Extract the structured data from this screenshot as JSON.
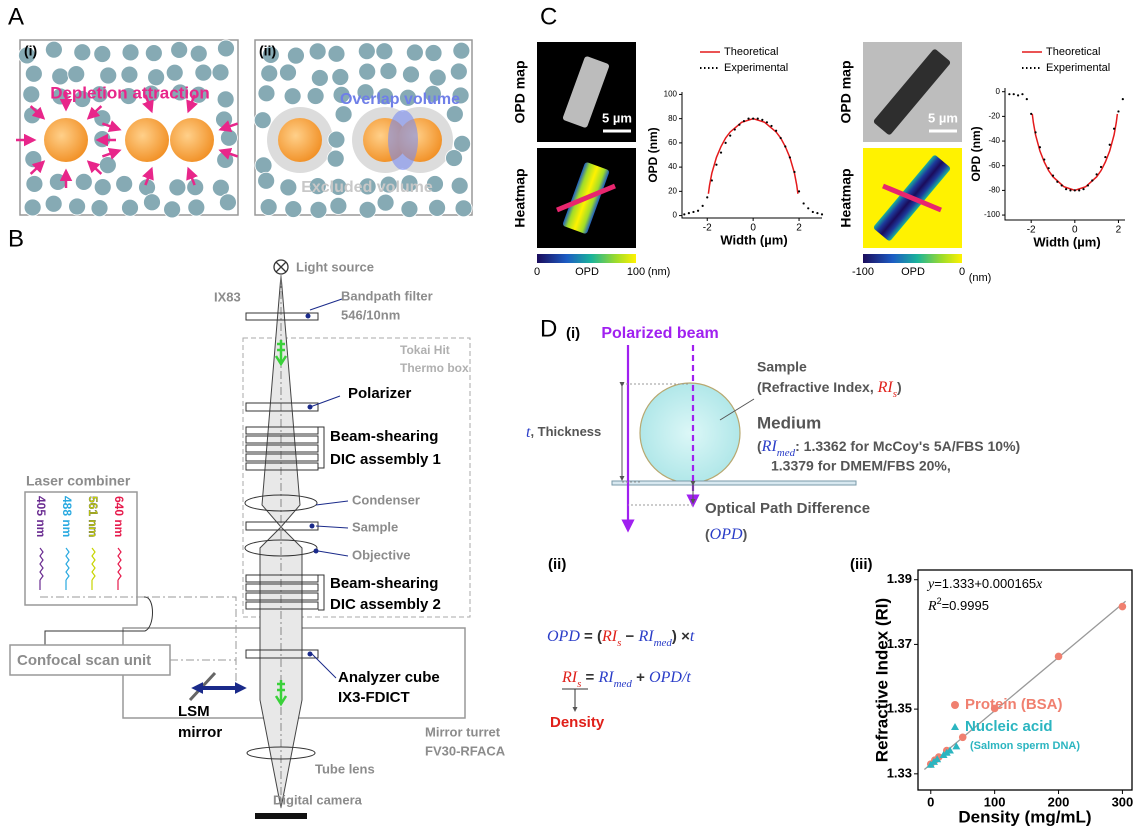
{
  "panel_a": {
    "label": "A",
    "i": {
      "label": "(i)",
      "title": "Depletion attraction"
    },
    "ii": {
      "label": "(ii)",
      "overlap": "Overlap volume",
      "excluded": "Excluded volume"
    }
  },
  "panel_b": {
    "label": "B",
    "light_source": "Light source",
    "ix83": "IX83",
    "filter": [
      "Bandpath filter",
      "546/10nm"
    ],
    "thermo": [
      "Tokai Hit",
      "Thermo box"
    ],
    "polarizer": "Polarizer",
    "dic1": [
      "Beam-shearing",
      "DIC assembly 1"
    ],
    "condenser": "Condenser",
    "sample": "Sample",
    "objective": "Objective",
    "dic2": [
      "Beam-shearing",
      "DIC assembly 2"
    ],
    "analyzer": [
      "Analyzer cube",
      "IX3-FDICT"
    ],
    "turret": [
      "Mirror turret",
      "FV30-RFACA"
    ],
    "tube_lens": "Tube lens",
    "camera": "Digital camera",
    "laser_combiner": "Laser combiner",
    "lasers": [
      {
        "label": "405 nm",
        "color": "#6a2c91"
      },
      {
        "label": "488 nm",
        "color": "#29a9e0"
      },
      {
        "label": "561 nm",
        "color": "#c8d400"
      },
      {
        "label": "640 nm",
        "color": "#e6194b"
      }
    ],
    "scan_unit": "Confocal scan unit",
    "lsm": [
      "LSM",
      "mirror"
    ]
  },
  "panel_c": {
    "label": "C",
    "samples": [
      {
        "opd_map": "OPD map",
        "heatmap": "Heatmap",
        "scale": "5 µm",
        "cbar_ticks": [
          0,
          100
        ],
        "cbar_name": "OPD",
        "cbar_unit": "(nm)",
        "chart": {
          "type": "line",
          "xlabel": "Width (µm)",
          "ylabel": "OPD (nm)",
          "xlim": [
            -3.1,
            3
          ],
          "ylim": [
            -2,
            102
          ],
          "xticks": [
            -2,
            0,
            2
          ],
          "yticks": [
            0,
            20,
            40,
            60,
            80,
            100
          ],
          "series": [
            {
              "name": "Theoretical",
              "color": "#e41a1c",
              "style": "solid",
              "x": [
                -1.95,
                -1.9,
                -1.8,
                -1.6,
                -1.4,
                -1.2,
                -1,
                -0.5,
                0,
                0.5,
                1,
                1.2,
                1.4,
                1.6,
                1.8,
                1.9,
                1.95
              ],
              "values": [
                18,
                25,
                35,
                48,
                57,
                64,
                69,
                77,
                80,
                77,
                69,
                64,
                57,
                48,
                35,
                25,
                18
              ]
            },
            {
              "name": "Experimental",
              "color": "#000000",
              "style": "dotted",
              "x": [
                -3,
                -2.8,
                -2.6,
                -2.4,
                -2.2,
                -2,
                -1.8,
                -1.6,
                -1.4,
                -1.2,
                -1,
                -0.8,
                -0.6,
                -0.4,
                -0.2,
                0,
                0.2,
                0.4,
                0.6,
                0.8,
                1,
                1.2,
                1.4,
                1.6,
                1.8,
                2,
                2.2,
                2.4,
                2.6,
                2.8,
                3
              ],
              "values": [
                1,
                2,
                3,
                4,
                8,
                15,
                29,
                42,
                52,
                60,
                66,
                71,
                75,
                78,
                80,
                80,
                80,
                79,
                77,
                74,
                70,
                64,
                57,
                48,
                36,
                20,
                10,
                6,
                3,
                2,
                1
              ]
            }
          ]
        }
      },
      {
        "opd_map": "OPD map",
        "heatmap": "Heatmap",
        "scale": "5 µm",
        "cbar_ticks": [
          -100,
          0
        ],
        "cbar_name": "OPD",
        "cbar_unit": "(nm)",
        "chart": {
          "type": "line",
          "xlabel": "Width (µm)",
          "ylabel": "OPD (nm)",
          "xlim": [
            -3.2,
            2.3
          ],
          "ylim": [
            -104,
            3
          ],
          "xticks": [
            -2,
            0,
            2
          ],
          "yticks": [
            0,
            -20,
            -40,
            -60,
            -80,
            -100
          ],
          "series": [
            {
              "name": "Theoretical",
              "color": "#e41a1c",
              "style": "solid",
              "x": [
                -1.95,
                -1.9,
                -1.8,
                -1.6,
                -1.4,
                -1.2,
                -1,
                -0.5,
                0,
                0.5,
                1,
                1.2,
                1.4,
                1.6,
                1.8,
                1.9,
                1.95
              ],
              "values": [
                -18,
                -25,
                -35,
                -48,
                -57,
                -64,
                -69,
                -77,
                -80,
                -77,
                -69,
                -64,
                -57,
                -48,
                -35,
                -25,
                -18
              ]
            },
            {
              "name": "Experimental",
              "color": "#000000",
              "style": "dotted",
              "x": [
                -3,
                -2.8,
                -2.6,
                -2.4,
                -2.2,
                -2,
                -1.8,
                -1.6,
                -1.4,
                -1.2,
                -1,
                -0.8,
                -0.6,
                -0.4,
                -0.2,
                0,
                0.2,
                0.4,
                0.6,
                0.8,
                1,
                1.2,
                1.4,
                1.6,
                1.8,
                2,
                2.2
              ],
              "values": [
                -2,
                -2,
                -3,
                -2,
                -6,
                -18,
                -33,
                -45,
                -55,
                -62,
                -68,
                -73,
                -76,
                -79,
                -80,
                -80,
                -80,
                -79,
                -76,
                -72,
                -67,
                -61,
                -53,
                -43,
                -30,
                -16,
                -6
              ]
            }
          ]
        }
      }
    ]
  },
  "panel_d": {
    "label": "D",
    "i": {
      "label": "(i)",
      "beam": "Polarized beam",
      "sample": "Sample",
      "sample_ri": [
        "(Refractive Index, ",
        "RI",
        "s",
        ")"
      ],
      "medium": "Medium",
      "medium_ri": [
        "(",
        "RI",
        "med",
        ": 1.3362 for McCoy's 5A/FBS 10%)"
      ],
      "medium_ri2": "1.3379 for DMEM/FBS 20%,",
      "thickness": [
        "t",
        ", Thickness"
      ],
      "opd": "Optical Path Difference",
      "opd_abbr": [
        "(",
        "OPD",
        ")"
      ]
    },
    "ii": {
      "label": "(ii)",
      "eq1": [
        "OPD",
        " = (",
        "RI",
        "s",
        " − ",
        "RI",
        "med",
        ") ×",
        "t"
      ],
      "eq2": [
        "RI",
        "s",
        " = ",
        "RI",
        "med",
        " + ",
        "OPD",
        "/",
        "t"
      ],
      "density": "Density"
    },
    "iii": {
      "label": "(iii)",
      "chart": {
        "type": "scatter",
        "xlabel": "Density (mg/mL)",
        "ylabel": "Refractive Index (RI)",
        "xlim": [
          -20,
          315
        ],
        "ylim": [
          1.325,
          1.393
        ],
        "xticks": [
          0,
          100,
          200,
          300
        ],
        "yticks": [
          1.33,
          1.35,
          1.37,
          1.39
        ],
        "equation": [
          "y",
          "=1.333+0.000165",
          "x"
        ],
        "r2": [
          "R",
          "2",
          "=0.9995"
        ],
        "fit": {
          "intercept": 1.333,
          "slope": 0.000165,
          "color": "#999999"
        },
        "series": [
          {
            "name": "Protein (BSA)",
            "color": "#f08070",
            "marker": "circle",
            "x": [
              0,
              6.25,
              12.5,
              25,
              50,
              100,
              200,
              300
            ],
            "values": [
              1.333,
              1.3342,
              1.3352,
              1.3372,
              1.3413,
              1.3502,
              1.3663,
              1.3817
            ]
          },
          {
            "name": "Nucleic acid",
            "note": "(Salmon sperm DNA)",
            "color": "#2bb5c0",
            "marker": "triangle",
            "x": [
              0,
              5,
              10,
              20,
              25,
              30,
              40
            ],
            "values": [
              1.3328,
              1.3337,
              1.3345,
              1.3358,
              1.3365,
              1.3372,
              1.3385
            ]
          }
        ]
      }
    }
  }
}
